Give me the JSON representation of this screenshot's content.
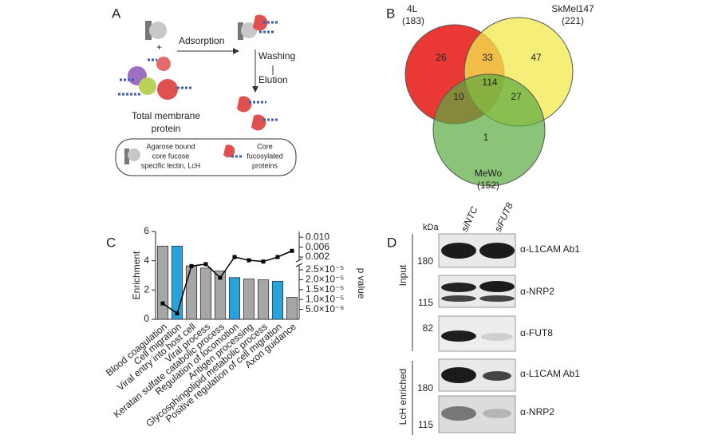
{
  "panel_a": {
    "label": "A",
    "plus": "+",
    "adsorption": "Adsorption",
    "washing": "Washing",
    "elution": "Elution",
    "total_label": [
      "Total membrane",
      "protein"
    ],
    "legend_lectin": [
      "Agarose bound",
      "core fucose",
      "specific lectin, LcH"
    ],
    "legend_proteins": [
      "Core",
      "fucosylated",
      "proteins"
    ]
  },
  "panel_b": {
    "label": "B",
    "sets": [
      {
        "name": "4L",
        "count": "(183)"
      },
      {
        "name": "SkMel147",
        "count": "(221)"
      },
      {
        "name": "MeWo",
        "count": "(152)"
      }
    ],
    "regions": {
      "only_4l": "26",
      "4l_skmel": "33",
      "only_skmel": "47",
      "all": "114",
      "4l_mewo": "10",
      "skmel_mewo": "27",
      "only_mewo": "1"
    }
  },
  "chart_data": {
    "type": "bar",
    "panel_label": "C",
    "ylabel": "Enrichment",
    "y2label": "p value",
    "categories": [
      "Blood coagulation",
      "Cell migration",
      "Viral entry into host cell",
      "Viral process",
      "Keratan sulfate catabolic process",
      "Regulation of locomotion",
      "Antigen processing",
      "Glycosphingolipid metabolic process",
      "Positive regulation of cell migration",
      "Axon guidance"
    ],
    "series": [
      {
        "type": "bar",
        "values": [
          5.0,
          5.0,
          3.65,
          3.5,
          3.3,
          2.85,
          2.75,
          2.7,
          2.6,
          1.5
        ],
        "colors": [
          "#a6a6a6",
          "#29a3dc",
          "#a6a6a6",
          "#a6a6a6",
          "#a6a6a6",
          "#29a3dc",
          "#a6a6a6",
          "#a6a6a6",
          "#29a3dc",
          "#a6a6a6"
        ]
      },
      {
        "type": "line",
        "axis": "y2",
        "color": "#000000",
        "values": [
          8e-06,
          3e-06,
          0.0006,
          0.0009,
          2.1e-05,
          0.002,
          0.0015,
          0.0013,
          0.002,
          0.0045
        ]
      }
    ],
    "ylim": [
      0,
      6
    ],
    "yticks": [
      0,
      2,
      4,
      6
    ],
    "y2lim": [
      0,
      0.01
    ],
    "y2ticks": [
      {
        "value": 5e-06,
        "label": "5.0×10⁻⁶"
      },
      {
        "value": 1e-05,
        "label": "1.0×10⁻⁵"
      },
      {
        "value": 1.5e-05,
        "label": "1.5×10⁻⁵"
      },
      {
        "value": 2e-05,
        "label": "2.0×10⁻⁵"
      },
      {
        "value": 2.5e-05,
        "label": "2.5×10⁻⁵"
      },
      {
        "value": 0.002,
        "label": "0.002"
      },
      {
        "value": 0.006,
        "label": "0.006"
      },
      {
        "value": 0.01,
        "label": "0.010"
      }
    ]
  },
  "panel_d": {
    "label": "D",
    "kda": "kDa",
    "lanes": [
      "siNTC",
      "siFUT8"
    ],
    "groups": [
      "Input",
      "LcH enriched"
    ],
    "markers": [
      "180",
      "115",
      "82",
      "180",
      "115"
    ],
    "antibodies": [
      "α-L1CAM Ab1",
      "α-NRP2",
      "α-FUT8",
      "α-L1CAM Ab1",
      "α-NRP2"
    ]
  }
}
